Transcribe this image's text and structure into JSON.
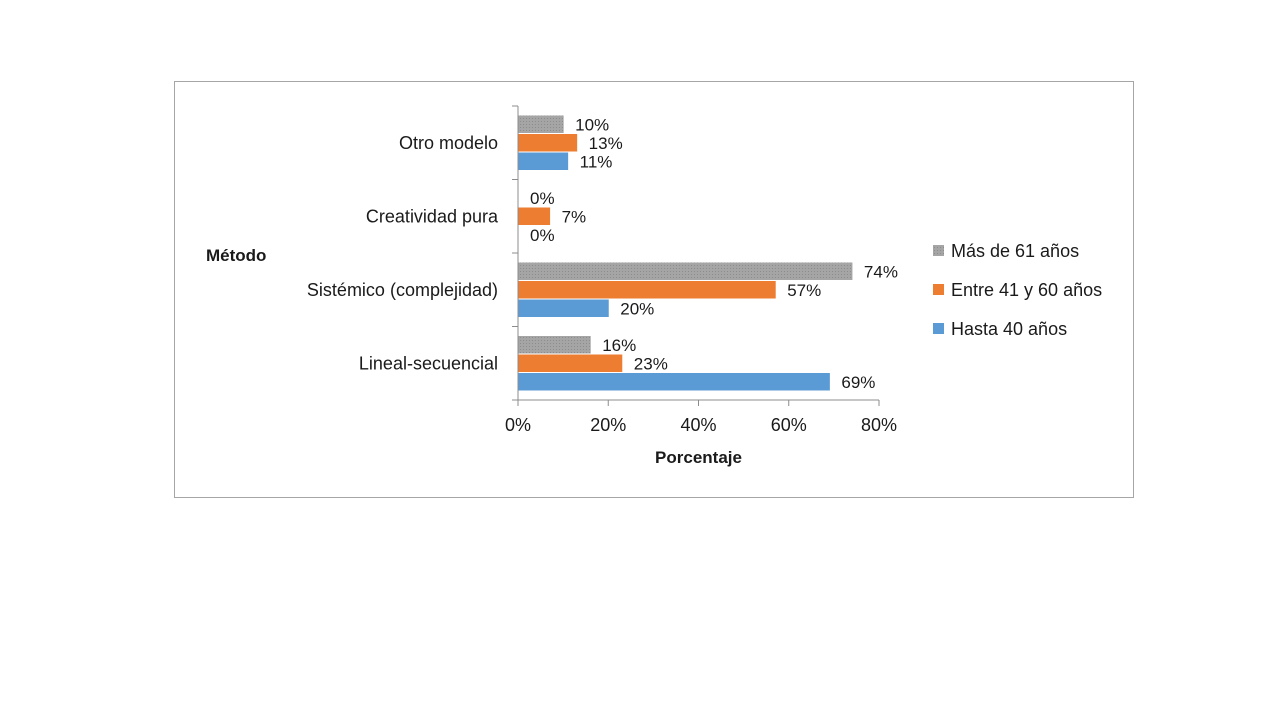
{
  "chart_data": {
    "type": "bar",
    "orientation": "horizontal",
    "categories": [
      "Lineal-secuencial",
      "Sistémico (complejidad)",
      "Creatividad pura",
      "Otro modelo"
    ],
    "series": [
      {
        "name": "Hasta 40 años",
        "color": "#5b9bd5",
        "values": [
          69,
          20,
          0,
          11
        ],
        "labels": [
          "69%",
          "20%",
          "0%",
          "11%"
        ]
      },
      {
        "name": "Entre 41 y 60 años",
        "color": "#ed7d31",
        "values": [
          23,
          57,
          7,
          13
        ],
        "labels": [
          "23%",
          "57%",
          "7%",
          "13%"
        ]
      },
      {
        "name": "Más de 61 años",
        "color": "#a5a5a5",
        "values": [
          16,
          74,
          0,
          10
        ],
        "labels": [
          "16%",
          "74%",
          "0%",
          "10%"
        ]
      }
    ],
    "xlabel": "Porcentaje",
    "ylabel": "Método",
    "xlim": [
      0,
      80
    ],
    "xticks": [
      0,
      20,
      40,
      60,
      80
    ],
    "xtick_labels": [
      "0%",
      "20%",
      "40%",
      "60%",
      "80%"
    ],
    "legend_position": "right",
    "legend_order": [
      "Más de 61 años",
      "Entre 41 y 60 años",
      "Hasta 40 años"
    ],
    "grid": false
  }
}
